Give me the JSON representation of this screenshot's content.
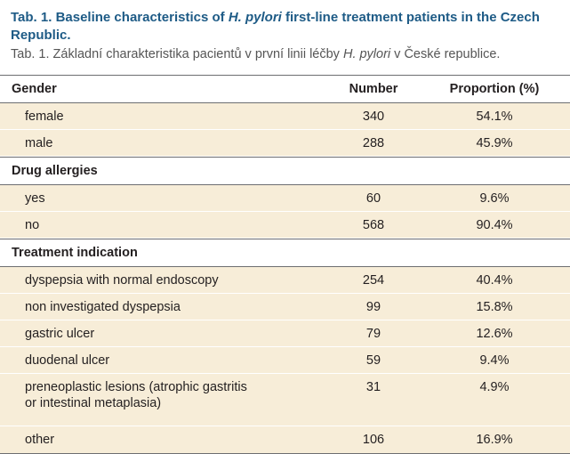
{
  "caption": {
    "en_prefix": "Tab. 1. Baseline characteristics of ",
    "en_italic": "H. pylori",
    "en_suffix": " first-line treatment patients in the Czech Republic.",
    "cz_prefix": "Tab. 1. Základní charakteristika pacientů v první linii léčby ",
    "cz_italic": "H. pylori",
    "cz_suffix": " v České republice."
  },
  "table": {
    "header": {
      "gender": "Gender",
      "number": "Number",
      "proportion": "Proportion (%)"
    },
    "gender": [
      {
        "label": "female",
        "number": "340",
        "proportion": "54.1%"
      },
      {
        "label": "male",
        "number": "288",
        "proportion": "45.9%"
      }
    ],
    "drug_allergies_label": "Drug allergies",
    "drug_allergies": [
      {
        "label": "yes",
        "number": "60",
        "proportion": "9.6%"
      },
      {
        "label": "no",
        "number": "568",
        "proportion": "90.4%"
      }
    ],
    "treatment_indication_label": "Treatment indication",
    "treatment_indication": [
      {
        "label": "dyspepsia with normal endoscopy",
        "number": "254",
        "proportion": "40.4%"
      },
      {
        "label": "non investigated dyspepsia",
        "number": "99",
        "proportion": "15.8%"
      },
      {
        "label": "gastric ulcer",
        "number": "79",
        "proportion": "12.6%"
      },
      {
        "label": "duodenal ulcer",
        "number": "59",
        "proportion": "9.4%"
      },
      {
        "label_line1": "preneoplastic lesions (atrophic gastritis",
        "label_line2": "or intestinal metaplasia)",
        "number": "31",
        "proportion": "4.9%"
      },
      {
        "label": "other",
        "number": "106",
        "proportion": "16.9%"
      }
    ]
  }
}
